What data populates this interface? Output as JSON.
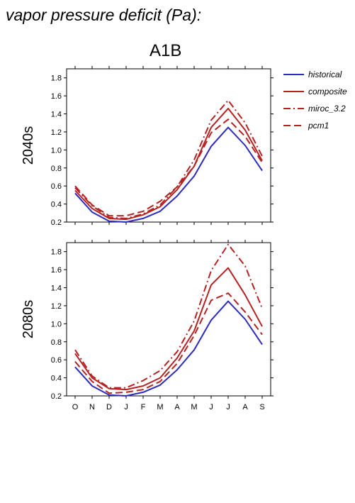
{
  "title": "vapor pressure deficit (Pa):",
  "scenario": "A1B",
  "colors": {
    "historical": "#2b2bbd",
    "composite": "#b52222",
    "model": "#b52222",
    "axis": "#000000"
  },
  "legend": [
    {
      "name": "historical",
      "dash": "solid",
      "color": "#2b2bbd"
    },
    {
      "name": "composite",
      "dash": "solid",
      "color": "#b52222"
    },
    {
      "name": "miroc_3.2",
      "dash": "dashdot",
      "color": "#b52222"
    },
    {
      "name": "pcm1",
      "dash": "dash",
      "color": "#b52222"
    }
  ],
  "chart_data": [
    {
      "type": "line",
      "panel_label": "2040s",
      "categories": [
        "O",
        "N",
        "D",
        "J",
        "F",
        "M",
        "A",
        "M",
        "J",
        "J",
        "A",
        "S"
      ],
      "ylim": [
        0.2,
        1.9
      ],
      "yticks": [
        0.2,
        0.4,
        0.6,
        0.8,
        1.0,
        1.2,
        1.4,
        1.6,
        1.8
      ],
      "series": [
        {
          "name": "historical",
          "values": [
            0.52,
            0.31,
            0.21,
            0.2,
            0.24,
            0.32,
            0.49,
            0.71,
            1.04,
            1.25,
            1.05,
            0.77
          ]
        },
        {
          "name": "composite",
          "values": [
            0.55,
            0.35,
            0.24,
            0.23,
            0.28,
            0.37,
            0.56,
            0.82,
            1.25,
            1.46,
            1.22,
            0.88
          ]
        },
        {
          "name": "miroc_3.2",
          "values": [
            0.58,
            0.38,
            0.25,
            0.24,
            0.29,
            0.39,
            0.59,
            0.89,
            1.33,
            1.55,
            1.3,
            0.93
          ]
        },
        {
          "name": "pcm1",
          "values": [
            0.6,
            0.39,
            0.27,
            0.27,
            0.32,
            0.43,
            0.59,
            0.82,
            1.19,
            1.34,
            1.15,
            0.86
          ]
        }
      ],
      "xlabel": "",
      "ylabel": ""
    },
    {
      "type": "line",
      "panel_label": "2080s",
      "categories": [
        "O",
        "N",
        "D",
        "J",
        "F",
        "M",
        "A",
        "M",
        "J",
        "J",
        "A",
        "S"
      ],
      "ylim": [
        0.2,
        1.9
      ],
      "yticks": [
        0.2,
        0.4,
        0.6,
        0.8,
        1.0,
        1.2,
        1.4,
        1.6,
        1.8
      ],
      "series": [
        {
          "name": "historical",
          "values": [
            0.52,
            0.31,
            0.21,
            0.2,
            0.24,
            0.32,
            0.49,
            0.71,
            1.04,
            1.25,
            1.05,
            0.77
          ]
        },
        {
          "name": "composite",
          "values": [
            0.67,
            0.4,
            0.28,
            0.27,
            0.31,
            0.4,
            0.62,
            0.92,
            1.43,
            1.62,
            1.32,
            0.97
          ]
        },
        {
          "name": "miroc_3.2",
          "values": [
            0.71,
            0.42,
            0.29,
            0.29,
            0.37,
            0.48,
            0.69,
            1.03,
            1.59,
            1.88,
            1.64,
            1.17
          ]
        },
        {
          "name": "pcm1",
          "values": [
            0.58,
            0.36,
            0.23,
            0.24,
            0.27,
            0.36,
            0.56,
            0.87,
            1.26,
            1.34,
            1.13,
            0.88
          ]
        }
      ],
      "xlabel": "",
      "ylabel": ""
    }
  ]
}
